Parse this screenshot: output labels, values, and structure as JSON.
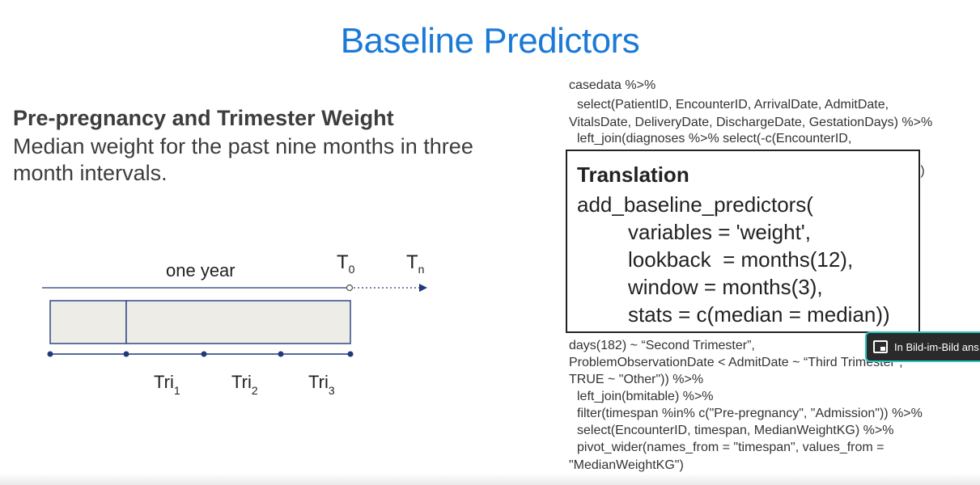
{
  "slide": {
    "title": "Baseline Predictors",
    "heading": "Pre-pregnancy and Trimester Weight",
    "description": "Median weight for the past nine months in three month intervals."
  },
  "diagram": {
    "period_label": "one year",
    "t0": "T",
    "t0_sub": "0",
    "tn": "T",
    "tn_sub": "n",
    "ticks": [
      {
        "label": "Tri",
        "sub": "1"
      },
      {
        "label": "Tri",
        "sub": "2"
      },
      {
        "label": "Tri",
        "sub": "3"
      }
    ]
  },
  "code": {
    "lines_top": [
      "casedata %>%",
      "select(PatientID, EncounterID, ArrivalDate, AdmitDate,",
      "VitalsDate, DeliveryDate, DischargeDate, GestationDays) %>%",
      "left_join(diagnoses %>% select(-c(EncounterID,"
    ],
    "line_tail": "))",
    "lines_bottom": [
      "days(182) ~ “Second Trimester”,",
      "ProblemObservationDate < AdmitDate ~ “Third Trimester”,",
      "TRUE ~ \"Other\")) %>%",
      "left_join(bmitable) %>%",
      "filter(timespan %in% c(\"Pre-pregnancy\", \"Admission\")) %>%",
      "select(EncounterID, timespan, MedianWeightKG) %>%",
      "pivot_wider(names_from = \"timespan\", values_from =",
      "\"MedianWeightKG\")"
    ]
  },
  "translation": {
    "title": "Translation",
    "lines": [
      "add_baseline_predictors(",
      "variables = 'weight',",
      "lookback  = months(12),",
      "window = months(3),",
      "stats = c(median = median))"
    ]
  },
  "pip": {
    "label": "In Bild-im-Bild ans",
    "icon": "picture-in-picture-icon"
  }
}
